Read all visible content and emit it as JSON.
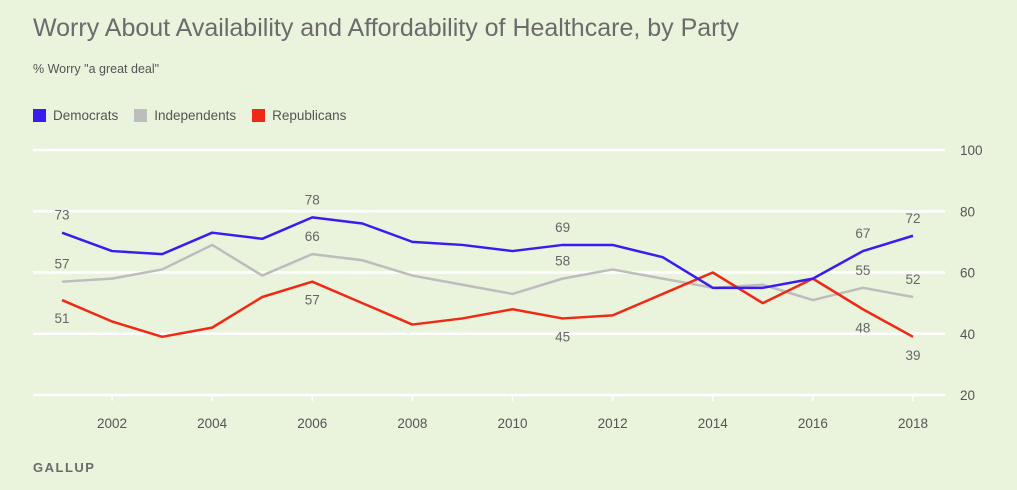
{
  "title": "Worry About Availability and Affordability of Healthcare, by Party",
  "subtitle": "% Worry \"a great deal\"",
  "brand": "GALLUP",
  "chart_data": {
    "type": "line",
    "title": "Worry About Availability and Affordability of Healthcare, by Party",
    "subtitle": "% Worry \"a great deal\"",
    "x": [
      2001,
      2002,
      2003,
      2004,
      2005,
      2006,
      2007,
      2008,
      2009,
      2010,
      2011,
      2012,
      2013,
      2014,
      2015,
      2016,
      2017,
      2018
    ],
    "x_ticks": [
      2002,
      2004,
      2006,
      2008,
      2010,
      2012,
      2014,
      2016,
      2018
    ],
    "y_ticks": [
      20,
      40,
      60,
      80,
      100
    ],
    "ylim": [
      20,
      100
    ],
    "xlim": [
      2001,
      2018
    ],
    "grid": true,
    "legend_position": "top-left",
    "series": [
      {
        "name": "Democrats",
        "color": "#3a1cf0",
        "values": [
          73,
          67,
          66,
          73,
          71,
          78,
          76,
          70,
          69,
          67,
          69,
          69,
          65,
          55,
          55,
          58,
          67,
          72
        ],
        "labels": [
          {
            "x": 2001,
            "value": 73,
            "pos": "above"
          },
          {
            "x": 2006,
            "value": 78,
            "pos": "above"
          },
          {
            "x": 2011,
            "value": 69,
            "pos": "above"
          },
          {
            "x": 2017,
            "value": 67,
            "pos": "above"
          },
          {
            "x": 2018,
            "value": 72,
            "pos": "above"
          }
        ]
      },
      {
        "name": "Independents",
        "color": "#bdbdbd",
        "values": [
          57,
          58,
          61,
          69,
          59,
          66,
          64,
          59,
          56,
          53,
          58,
          61,
          58,
          55,
          56,
          51,
          55,
          52
        ],
        "labels": [
          {
            "x": 2001,
            "value": 57,
            "pos": "above"
          },
          {
            "x": 2006,
            "value": 66,
            "pos": "above"
          },
          {
            "x": 2011,
            "value": 58,
            "pos": "above"
          },
          {
            "x": 2017,
            "value": 55,
            "pos": "above"
          },
          {
            "x": 2018,
            "value": 52,
            "pos": "above"
          }
        ]
      },
      {
        "name": "Republicans",
        "color": "#ee2a17",
        "values": [
          51,
          44,
          39,
          42,
          52,
          57,
          50,
          43,
          45,
          48,
          45,
          46,
          53,
          60,
          50,
          58,
          48,
          39
        ],
        "labels": [
          {
            "x": 2001,
            "value": 51,
            "pos": "below"
          },
          {
            "x": 2006,
            "value": 57,
            "pos": "below"
          },
          {
            "x": 2011,
            "value": 45,
            "pos": "below"
          },
          {
            "x": 2017,
            "value": 48,
            "pos": "below"
          },
          {
            "x": 2018,
            "value": 39,
            "pos": "below"
          }
        ]
      }
    ]
  }
}
